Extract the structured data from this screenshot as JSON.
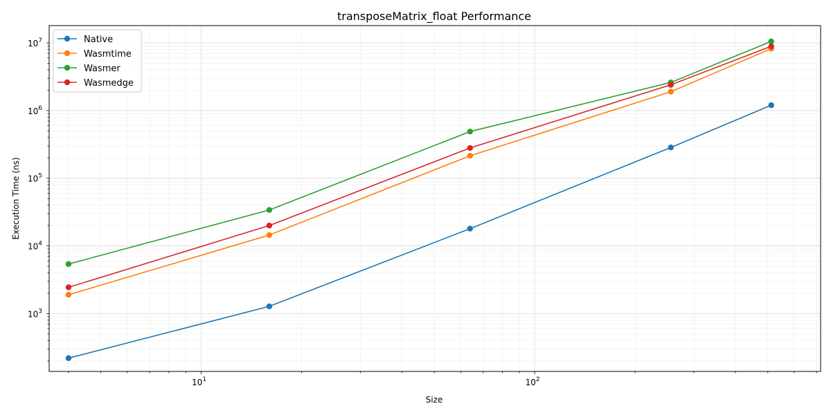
{
  "chart_data": {
    "type": "line",
    "title": "transposeMatrix_float Performance",
    "xlabel": "Size",
    "ylabel": "Execution Time (ns)",
    "xscale": "log",
    "yscale": "log",
    "xlim": [
      3.5,
      720
    ],
    "ylim": [
      140,
      18000000
    ],
    "grid": "major and minor",
    "legend_position": "top-left",
    "x": [
      4,
      16,
      64,
      256,
      512
    ],
    "xticks": [
      {
        "value": 10,
        "base": "10",
        "exp": "1"
      },
      {
        "value": 100,
        "base": "10",
        "exp": "2"
      }
    ],
    "yticks": [
      {
        "value": 1000,
        "base": "10",
        "exp": "3"
      },
      {
        "value": 10000,
        "base": "10",
        "exp": "4"
      },
      {
        "value": 100000,
        "base": "10",
        "exp": "5"
      },
      {
        "value": 1000000,
        "base": "10",
        "exp": "6"
      },
      {
        "value": 10000000,
        "base": "10",
        "exp": "7"
      }
    ],
    "series": [
      {
        "name": "Native",
        "color": "#1f77b4",
        "values": [
          220,
          1280,
          18000,
          285000,
          1200000
        ]
      },
      {
        "name": "Wasmtime",
        "color": "#ff7f0e",
        "values": [
          1900,
          14500,
          215000,
          1900000,
          8200000
        ]
      },
      {
        "name": "Wasmer",
        "color": "#2ca02c",
        "values": [
          5400,
          34000,
          490000,
          2600000,
          10500000
        ]
      },
      {
        "name": "Wasmedge",
        "color": "#d62728",
        "values": [
          2450,
          20000,
          280000,
          2400000,
          8900000
        ]
      }
    ]
  }
}
